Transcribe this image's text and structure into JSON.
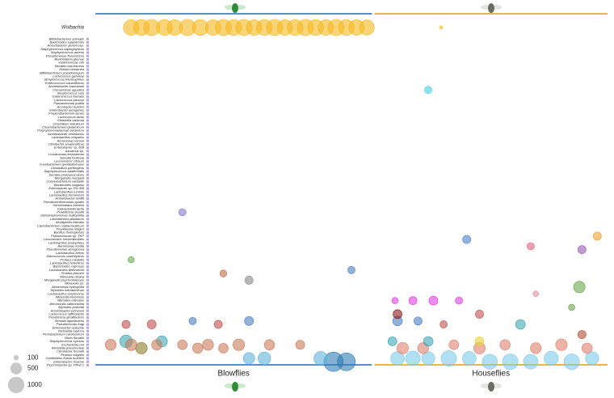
{
  "chart_data": {
    "type": "bubble",
    "xlim": [
      0,
      200
    ],
    "groups": [
      {
        "label": "Blowflies",
        "range": [
          0,
          108
        ],
        "color": "#5b8fc9"
      },
      {
        "label": "Houseflies",
        "range": [
          109,
          200
        ],
        "color": "#e8b64a"
      }
    ],
    "taxa": [
      "Wolbachia",
      "Bifidobacterium animalis",
      "Bacteroides salanitronis",
      "Acinetobacter genomosp.",
      "Staphylococcus saprophyticus",
      "Staphylococcus aureus",
      "Pseudomonas fluorescens",
      "Burkholderia glumae",
      "Xanthomonas citri",
      "Serratia marcescens",
      "Dietzia cinnamea",
      "Bifidobacterium pseudolongum",
      "Lactococcus garvieae",
      "Streptococcus thermophilus",
      "Enterococcus casseliflavus",
      "Acinetobacter baumannii",
      "Comamonas aquatica",
      "Streptococcus suis",
      "Enterococcus faecalis",
      "Lactococcus piscium",
      "Pseudomonas putida",
      "Arcobacter butzleri",
      "Enterobacter aerogenes",
      "Propionibacterium acnes",
      "Lactococcus lactis",
      "Klebsiella variicola",
      "Clostridium botulinum",
      "Corynebacterium glutamicum",
      "Porphyromonadaceae bacterium",
      "Acinetobacter venetianus",
      "Lactobacillus crispatus",
      "Aeromonas veronii",
      "Citrobacter amalonaticus",
      "Enterobacter sp. 638",
      "Azoarcus sp.",
      "Comamonas testosteroni",
      "Serratia fonticola",
      "Leuconostoc citreum",
      "Fusobacterium gonidiaformans",
      "Clostridium perfringens",
      "Staphylococcus epidermidis",
      "Serratia proteamaculans",
      "Morganella morganii",
      "Corynebacterium variabile",
      "Bacteroides vulgatus",
      "Enterobacter sp. R4-368",
      "Lactobacillus ruminis",
      "Lactobacillus fermentum",
      "Acinetobacter lwoffii",
      "Pseudoxanthomonas spadix",
      "Xenorhabdus bovienii",
      "Edwardsiella tarda",
      "Providencia stuartii",
      "Stenotrophomonas maltophilia",
      "Lactobacillus plantarum",
      "Alcaligenes faecalis",
      "Carnobacterium maltaromaticum",
      "Providencia rettgeri",
      "Bacillus thuringiensis",
      "Pseudomonas sp. TKP",
      "Leuconostoc mesenteroides",
      "Lactobacillus acidophilus",
      "Aeromonas media",
      "Pseudomonas aeruginosa",
      "Lactobacillus brevis",
      "Macrococcus caseolyticus",
      "Proteus mirabilis",
      "Lactobacillus helveticus",
      "Bacteroides caprosus",
      "Lactobacillus delbrueckii",
      "Proteus penneri",
      "Weissella cibaria",
      "Morganella psychrotolerans",
      "Moraxella sp.",
      "Aeromonas hydrophila",
      "Myroides odoratimimus",
      "Lactobacillus amylovorus",
      "Weissella koreensis",
      "Myroides odoratus",
      "Aeromonas salmonicida",
      "Myroides profundi",
      "Acinetobacter johnsonii",
      "Lactococcus raffinolactis",
      "Providencia alcalifaciens",
      "Serratia liquefaciens",
      "Pseudomonas fragi",
      "Enterobacter asburiae",
      "Klebsiella oxytoca",
      "Pectobacterium carotovorum",
      "Vibrio fluvialis",
      "Staphylococcus xylosus",
      "Escherichia coli",
      "Klebsiella pneumoniae",
      "Citrobacter freundii",
      "Proteus vulgaris",
      "Candidatus Sulcia muelleri",
      "Enterobacter cloacae",
      "Psychrobacter sp. PRwf-1"
    ],
    "bubbles": {
      "x": [
        14,
        18,
        22,
        27,
        31,
        36,
        41,
        46,
        50,
        54,
        58,
        62,
        66,
        70,
        74,
        78,
        82,
        86,
        90,
        94,
        98,
        102,
        106,
        135,
        93,
        98,
        88,
        60,
        66,
        40,
        50,
        18,
        26,
        12,
        118,
        124,
        130,
        138,
        146,
        154,
        162,
        170,
        178,
        186,
        194,
        120,
        128,
        140,
        150,
        160,
        172,
        182,
        192,
        6,
        14,
        24,
        34,
        44,
        56,
        68,
        80,
        116,
        130,
        150,
        12,
        22,
        38,
        48,
        60,
        118,
        126,
        136,
        117,
        124,
        132,
        142,
        150,
        60,
        100,
        118,
        166,
        189,
        170,
        145,
        130,
        190,
        196,
        14,
        190,
        34,
        186,
        172,
        50
      ],
      "row": [
        0,
        0,
        0,
        0,
        0,
        0,
        0,
        0,
        0,
        0,
        0,
        0,
        0,
        0,
        0,
        0,
        0,
        0,
        0,
        0,
        0,
        0,
        0,
        0,
        96,
        96,
        95,
        95,
        95,
        92,
        92,
        92,
        90,
        90,
        95,
        95,
        95,
        95,
        95,
        96,
        96,
        96,
        95,
        96,
        95,
        92,
        92,
        91,
        92,
        91,
        92,
        91,
        92,
        91,
        91,
        91,
        91,
        91,
        91,
        91,
        91,
        90,
        90,
        90,
        85,
        85,
        84,
        85,
        84,
        84,
        84,
        85,
        78,
        78,
        78,
        78,
        82,
        72,
        69,
        82,
        85,
        74,
        62,
        60,
        16,
        63,
        59,
        66,
        88,
        52,
        80,
        76,
        70
      ],
      "size": [
        900,
        950,
        1000,
        950,
        900,
        1000,
        950,
        900,
        1000,
        950,
        1000,
        900,
        950,
        1000,
        900,
        950,
        1000,
        950,
        900,
        1000,
        950,
        900,
        850,
        40,
        1400,
        1200,
        700,
        500,
        600,
        400,
        350,
        500,
        450,
        600,
        700,
        800,
        650,
        900,
        700,
        850,
        900,
        800,
        750,
        900,
        650,
        500,
        450,
        350,
        500,
        400,
        450,
        500,
        400,
        450,
        500,
        400,
        350,
        450,
        500,
        400,
        300,
        300,
        350,
        300,
        250,
        300,
        200,
        250,
        300,
        350,
        250,
        200,
        150,
        250,
        300,
        200,
        250,
        250,
        200,
        300,
        350,
        500,
        200,
        250,
        200,
        250,
        250,
        150,
        250,
        200,
        150,
        120,
        180
      ],
      "color": [
        "#f5b921",
        "#f5b921",
        "#f5b921",
        "#f5b921",
        "#f5b921",
        "#f5b921",
        "#f5b921",
        "#f5b921",
        "#f5b921",
        "#f5b921",
        "#f5b921",
        "#f5b921",
        "#f5b921",
        "#f5b921",
        "#f5b921",
        "#f5b921",
        "#f5b921",
        "#f5b921",
        "#f5b921",
        "#f5b921",
        "#f5b921",
        "#f5b921",
        "#f5b921",
        "#f5b921",
        "#2f7db3",
        "#2f7db3",
        "#5fb4d8",
        "#5fb4d8",
        "#5fb4d8",
        "#c97b5a",
        "#c97b5a",
        "#8a7d2c",
        "#3aa7b5",
        "#3aa7b5",
        "#7ccbea",
        "#7ccbea",
        "#7ccbea",
        "#7ccbea",
        "#7ccbea",
        "#7ccbea",
        "#7ccbea",
        "#7ccbea",
        "#7ccbea",
        "#7ccbea",
        "#7ccbea",
        "#e08070",
        "#e08070",
        "#e08070",
        "#e08070",
        "#e08070",
        "#e08070",
        "#e08070",
        "#e08070",
        "#c97b5a",
        "#c97b5a",
        "#c97b5a",
        "#c97b5a",
        "#c97b5a",
        "#c97b5a",
        "#c97b5a",
        "#c97b5a",
        "#3aa7b5",
        "#3aa7b5",
        "#e8d23a",
        "#c0504d",
        "#c0504d",
        "#4a7fc0",
        "#c0504d",
        "#4a7fc0",
        "#4a7fc0",
        "#4a7fc0",
        "#c0504d",
        "#e040e0",
        "#e040e0",
        "#e040e0",
        "#e040e0",
        "#c0504d",
        "#888888",
        "#4a7fc0",
        "#8b1a1a",
        "#3aa7b5",
        "#6aa84f",
        "#e06080",
        "#4a7fd0",
        "#40d0e0",
        "#9b59b6",
        "#f0a030",
        "#6aa84f",
        "#b05030",
        "#8877cc",
        "#6aa84f",
        "#e090a0",
        "#c06a4a"
      ]
    },
    "size_legend": [
      100,
      500,
      1000
    ]
  }
}
